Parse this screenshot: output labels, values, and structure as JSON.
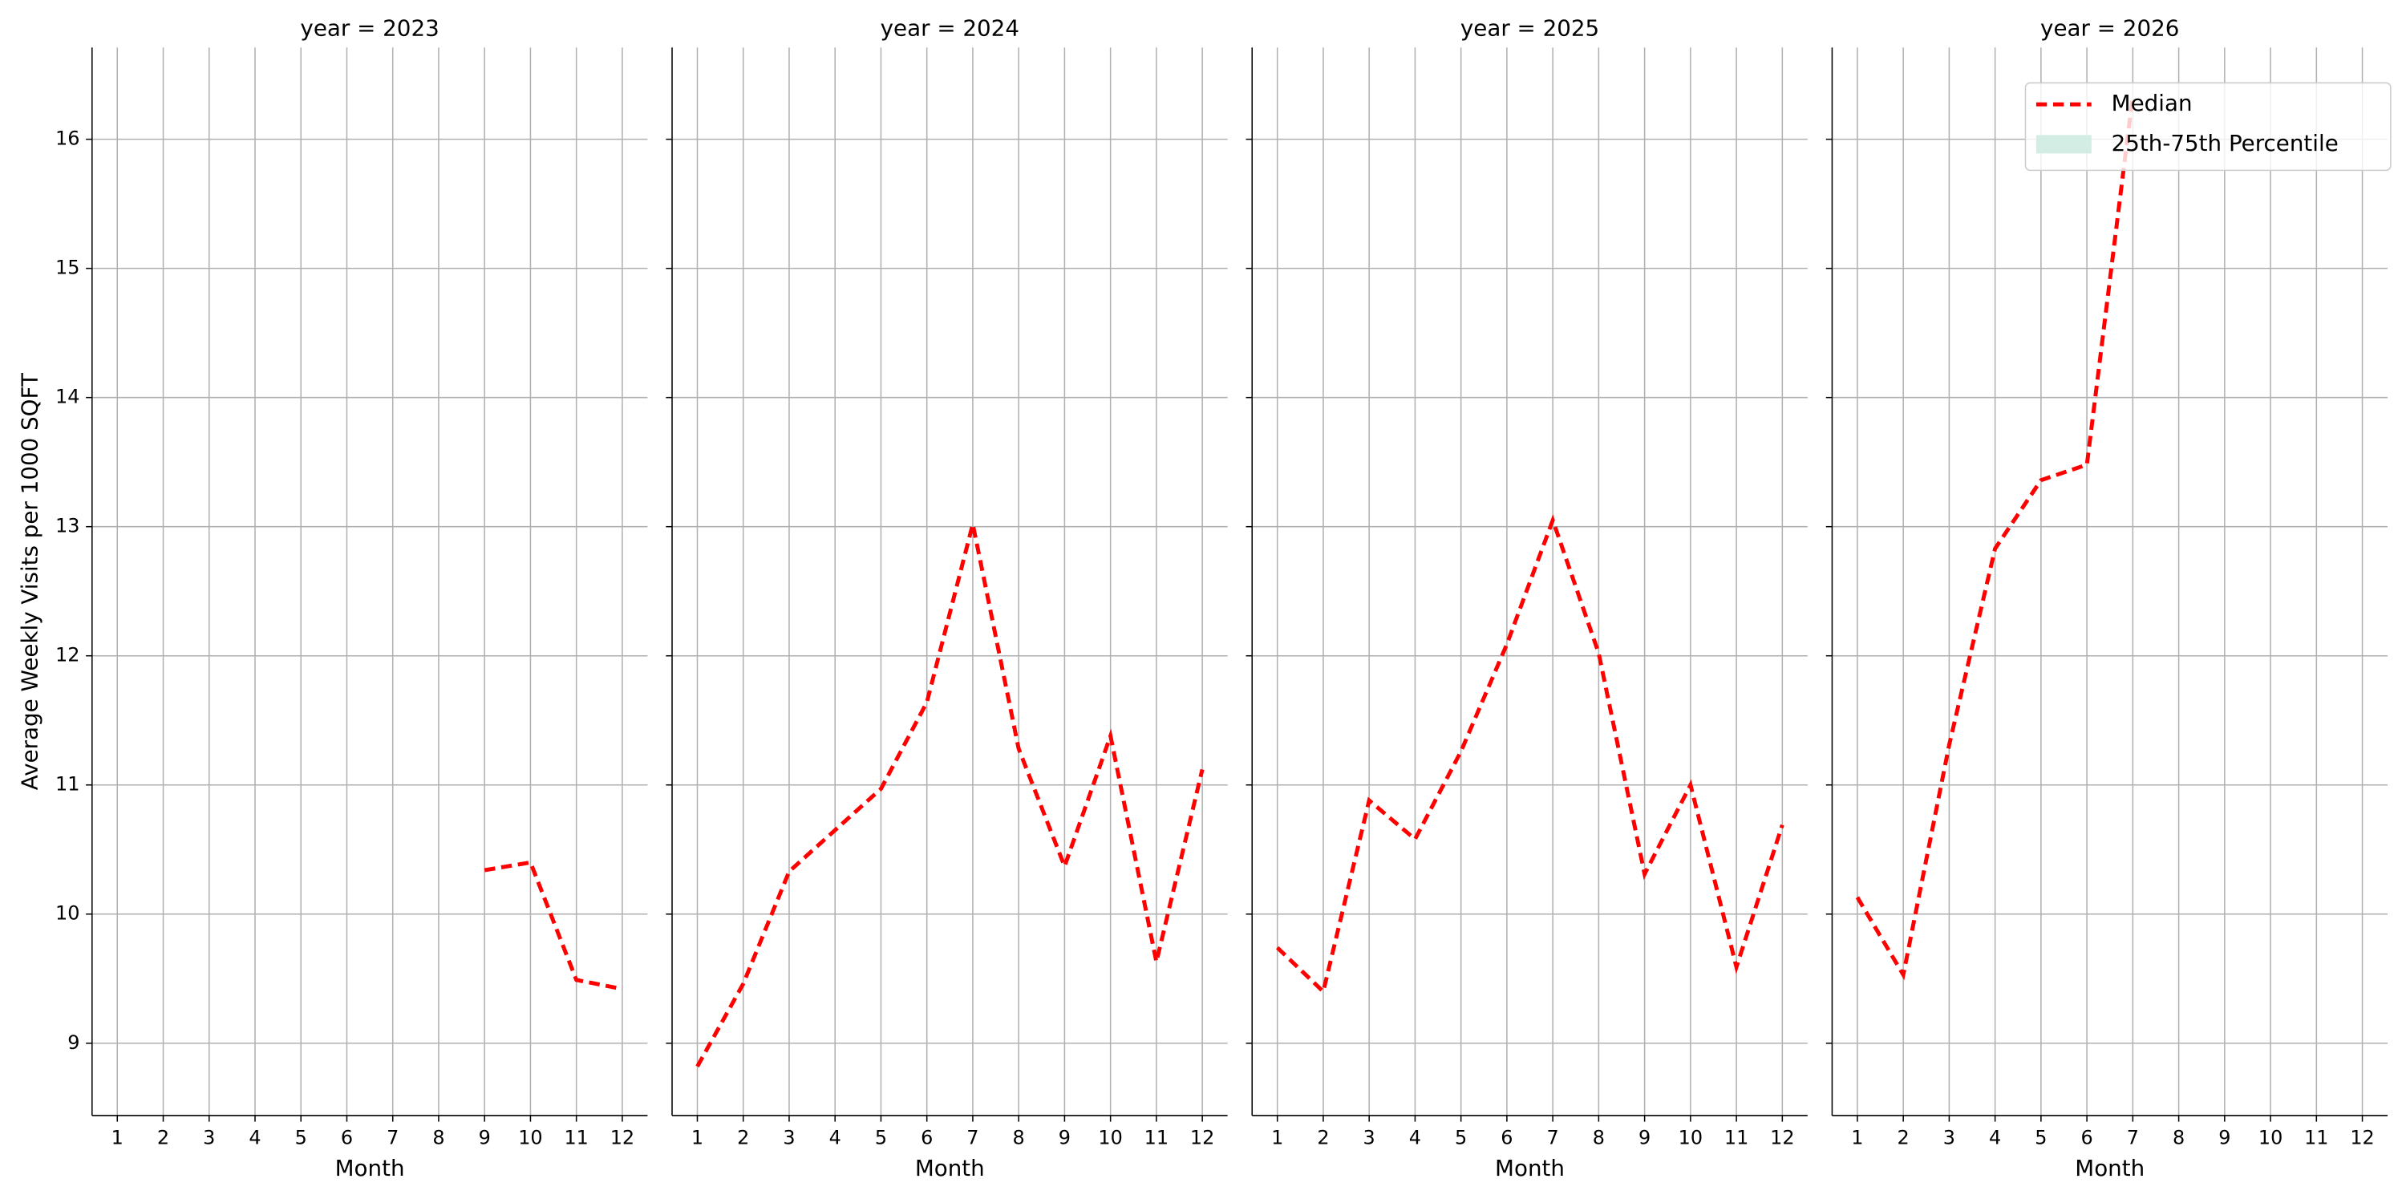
{
  "chart_data": [
    {
      "type": "line",
      "title": "year = 2023",
      "xlabel": "Month",
      "ylabel": "Average Weekly Visits per 1000 SQFT",
      "x": [
        1,
        2,
        3,
        4,
        5,
        6,
        7,
        8,
        9,
        10,
        11,
        12
      ],
      "series": [
        {
          "color": "#ff0000",
          "values": [
            null,
            null,
            null,
            null,
            null,
            null,
            null,
            null,
            10.34,
            10.4,
            9.49,
            9.42
          ]
        }
      ],
      "xlim": [
        0.45,
        12.55
      ],
      "xticks": [
        1,
        2,
        3,
        4,
        5,
        6,
        7,
        8,
        9,
        10,
        11,
        12
      ],
      "ylim": [
        8.44,
        16.71
      ],
      "yticks": [
        9,
        10,
        11,
        12,
        13,
        14,
        15,
        16
      ],
      "grid": true
    },
    {
      "type": "line",
      "title": "year = 2024",
      "xlabel": "Month",
      "x": [
        1,
        2,
        3,
        4,
        5,
        6,
        7,
        8,
        9,
        10,
        11,
        12
      ],
      "series": [
        {
          "color": "#ff0000",
          "values": [
            8.82,
            9.46,
            10.33,
            10.65,
            10.97,
            11.64,
            13.02,
            11.28,
            10.37,
            11.38,
            9.63,
            11.12
          ]
        }
      ],
      "xlim": [
        0.45,
        12.55
      ],
      "xticks": [
        1,
        2,
        3,
        4,
        5,
        6,
        7,
        8,
        9,
        10,
        11,
        12
      ],
      "ylim": [
        8.44,
        16.71
      ],
      "yticks": [
        9,
        10,
        11,
        12,
        13,
        14,
        15,
        16
      ],
      "grid": true
    },
    {
      "type": "line",
      "title": "year = 2025",
      "xlabel": "Month",
      "x": [
        1,
        2,
        3,
        4,
        5,
        6,
        7,
        8,
        9,
        10,
        11,
        12
      ],
      "series": [
        {
          "color": "#ff0000",
          "values": [
            9.74,
            9.4,
            10.88,
            10.58,
            11.26,
            12.09,
            13.05,
            12.02,
            10.31,
            11.0,
            9.59,
            10.69
          ]
        }
      ],
      "xlim": [
        0.45,
        12.55
      ],
      "xticks": [
        1,
        2,
        3,
        4,
        5,
        6,
        7,
        8,
        9,
        10,
        11,
        12
      ],
      "ylim": [
        8.44,
        16.71
      ],
      "yticks": [
        9,
        10,
        11,
        12,
        13,
        14,
        15,
        16
      ],
      "grid": true
    },
    {
      "type": "line",
      "title": "year = 2026",
      "xlabel": "Month",
      "x": [
        1,
        2,
        3,
        4,
        5,
        6,
        7,
        8,
        9,
        10,
        11,
        12
      ],
      "series": [
        {
          "color": "#ff0000",
          "values": [
            10.13,
            9.53,
            11.31,
            12.83,
            13.36,
            13.48,
            16.34,
            null,
            null,
            null,
            null,
            null
          ]
        }
      ],
      "xlim": [
        0.45,
        12.55
      ],
      "xticks": [
        1,
        2,
        3,
        4,
        5,
        6,
        7,
        8,
        9,
        10,
        11,
        12
      ],
      "ylim": [
        8.44,
        16.71
      ],
      "yticks": [
        9,
        10,
        11,
        12,
        13,
        14,
        15,
        16
      ],
      "grid": true,
      "legend": {
        "loc": "upper right",
        "entries": [
          {
            "label": "Median",
            "color": "#ff0000",
            "kind": "dashed-line"
          },
          {
            "label": "25th-75th Percentile",
            "color": "#d3ece4",
            "kind": "patch"
          }
        ]
      }
    }
  ]
}
